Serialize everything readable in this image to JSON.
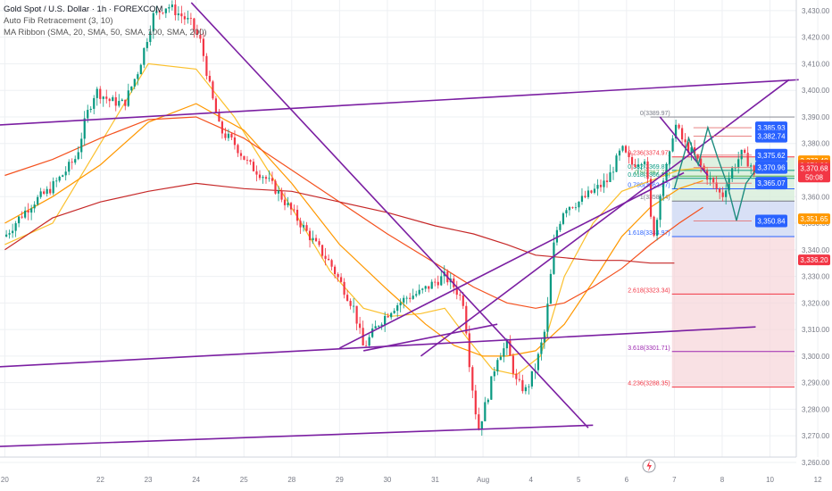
{
  "header": {
    "symbol": "Gold Spot / U.S. Dollar · 1h · FOREXCOM",
    "indicator_fib": "Auto Fib Retracement (3, 10)",
    "indicator_ma": "MA Ribbon (SMA, 20, SMA, 50, SMA, 100, SMA, 200)"
  },
  "chart_data": {
    "type": "candlestick",
    "instrument": "Gold Spot / U.S. Dollar",
    "timeframe": "1h",
    "source": "FOREXCOM",
    "y_axis": {
      "range": [
        3262,
        3434
      ],
      "ticks": [
        3260,
        3270,
        3280,
        3290,
        3300,
        3310,
        3320,
        3330,
        3340,
        3350,
        3360,
        3370,
        3380,
        3390,
        3400,
        3410,
        3420,
        3430
      ],
      "tick_labels": [
        "3,260.00",
        "3,270.00",
        "3,280.00",
        "3,290.00",
        "3,300.00",
        "3,310.00",
        "3,320.00",
        "3,330.00",
        "3,340.00",
        "3,350.00",
        "3,360.00",
        "3,370.00",
        "3,380.00",
        "3,390.00",
        "3,400.00",
        "3,410.00",
        "3,420.00",
        "3,430.00"
      ]
    },
    "x_axis": {
      "range": [
        19.4,
        12.05
      ],
      "tick_labels": [
        {
          "label": "20",
          "x": 19.5
        },
        {
          "label": "22",
          "x": 21.5
        },
        {
          "label": "23",
          "x": 22.5
        },
        {
          "label": "24",
          "x": 23.5
        },
        {
          "label": "25",
          "x": 24.5
        },
        {
          "label": "28",
          "x": 25.5
        },
        {
          "label": "29",
          "x": 26.5
        },
        {
          "label": "30",
          "x": 27.5
        },
        {
          "label": "31",
          "x": 28.5
        },
        {
          "label": "Aug",
          "x": 29.5
        },
        {
          "label": "4",
          "x": 30.5
        },
        {
          "label": "5",
          "x": 31.5
        },
        {
          "label": "6",
          "x": 32.5
        },
        {
          "label": "7",
          "x": 33.5
        },
        {
          "label": "8",
          "x": 34.5
        },
        {
          "label": "10",
          "x": 35.5
        },
        {
          "label": "12",
          "x": 36.5
        }
      ]
    },
    "price_path": [
      [
        19.5,
        3345
      ],
      [
        19.8,
        3352
      ],
      [
        20.1,
        3358
      ],
      [
        20.4,
        3362
      ],
      [
        20.7,
        3368
      ],
      [
        21.0,
        3375
      ],
      [
        21.2,
        3390
      ],
      [
        21.4,
        3400
      ],
      [
        21.7,
        3396
      ],
      [
        22.0,
        3395
      ],
      [
        22.3,
        3408
      ],
      [
        22.6,
        3428
      ],
      [
        22.9,
        3432
      ],
      [
        23.2,
        3428
      ],
      [
        23.4,
        3425
      ],
      [
        23.6,
        3418
      ],
      [
        23.8,
        3400
      ],
      [
        24.0,
        3385
      ],
      [
        24.3,
        3380
      ],
      [
        24.6,
        3372
      ],
      [
        24.9,
        3368
      ],
      [
        25.2,
        3362
      ],
      [
        25.6,
        3352
      ],
      [
        26.0,
        3342
      ],
      [
        26.3,
        3335
      ],
      [
        26.6,
        3325
      ],
      [
        26.8,
        3318
      ],
      [
        27.0,
        3303
      ],
      [
        27.3,
        3312
      ],
      [
        27.6,
        3318
      ],
      [
        27.9,
        3322
      ],
      [
        28.2,
        3324
      ],
      [
        28.5,
        3328
      ],
      [
        28.7,
        3330
      ],
      [
        28.9,
        3326
      ],
      [
        29.1,
        3320
      ],
      [
        29.2,
        3300
      ],
      [
        29.3,
        3285
      ],
      [
        29.4,
        3272
      ],
      [
        29.6,
        3285
      ],
      [
        29.8,
        3300
      ],
      [
        30.0,
        3304
      ],
      [
        30.2,
        3290
      ],
      [
        30.4,
        3287
      ],
      [
        30.6,
        3296
      ],
      [
        30.8,
        3310
      ],
      [
        31.0,
        3345
      ],
      [
        31.2,
        3356
      ],
      [
        31.5,
        3358
      ],
      [
        31.8,
        3362
      ],
      [
        32.1,
        3366
      ],
      [
        32.4,
        3378
      ],
      [
        32.6,
        3372
      ],
      [
        32.9,
        3375
      ],
      [
        33.0,
        3352
      ],
      [
        33.1,
        3345
      ],
      [
        33.2,
        3362
      ],
      [
        33.4,
        3375
      ],
      [
        33.5,
        3388
      ],
      [
        33.7,
        3380
      ],
      [
        33.9,
        3376
      ],
      [
        34.1,
        3370
      ],
      [
        34.3,
        3365
      ],
      [
        34.5,
        3360
      ],
      [
        34.7,
        3370
      ],
      [
        34.9,
        3376
      ],
      [
        35.1,
        3372
      ],
      [
        35.2,
        3365
      ]
    ],
    "moving_averages": [
      {
        "name": "SMA 20",
        "color": "#fbc02d",
        "points": [
          [
            19.5,
            3342
          ],
          [
            20.5,
            3350
          ],
          [
            21.5,
            3380
          ],
          [
            22.5,
            3410
          ],
          [
            23.5,
            3408
          ],
          [
            24.3,
            3390
          ],
          [
            25.0,
            3370
          ],
          [
            25.7,
            3350
          ],
          [
            26.3,
            3332
          ],
          [
            27.0,
            3318
          ],
          [
            27.6,
            3315
          ],
          [
            28.2,
            3316
          ],
          [
            28.7,
            3318
          ],
          [
            29.2,
            3306
          ],
          [
            29.7,
            3295
          ],
          [
            30.2,
            3293
          ],
          [
            30.7,
            3300
          ],
          [
            31.2,
            3330
          ],
          [
            31.8,
            3350
          ],
          [
            32.4,
            3362
          ],
          [
            33.0,
            3366
          ],
          [
            33.6,
            3370
          ],
          [
            34.2,
            3371
          ]
        ]
      },
      {
        "name": "SMA 50",
        "color": "#ff9800",
        "points": [
          [
            19.5,
            3350
          ],
          [
            20.5,
            3360
          ],
          [
            21.5,
            3372
          ],
          [
            22.5,
            3388
          ],
          [
            23.5,
            3395
          ],
          [
            24.5,
            3385
          ],
          [
            25.5,
            3365
          ],
          [
            26.5,
            3342
          ],
          [
            27.5,
            3325
          ],
          [
            28.3,
            3312
          ],
          [
            28.9,
            3304
          ],
          [
            29.5,
            3300
          ],
          [
            30.0,
            3300
          ],
          [
            30.6,
            3302
          ],
          [
            31.2,
            3312
          ],
          [
            31.8,
            3328
          ],
          [
            32.4,
            3345
          ],
          [
            33.0,
            3356
          ],
          [
            33.6,
            3363
          ],
          [
            34.1,
            3366
          ]
        ]
      },
      {
        "name": "SMA 100",
        "color": "#f4511e",
        "points": [
          [
            19.5,
            3368
          ],
          [
            20.5,
            3374
          ],
          [
            21.5,
            3382
          ],
          [
            22.5,
            3389
          ],
          [
            23.5,
            3390
          ],
          [
            24.5,
            3382
          ],
          [
            25.5,
            3370
          ],
          [
            26.5,
            3358
          ],
          [
            27.5,
            3346
          ],
          [
            28.5,
            3335
          ],
          [
            29.3,
            3326
          ],
          [
            30.0,
            3320
          ],
          [
            30.6,
            3318
          ],
          [
            31.2,
            3320
          ],
          [
            31.8,
            3326
          ],
          [
            32.4,
            3333
          ],
          [
            33.0,
            3342
          ],
          [
            33.6,
            3350
          ],
          [
            34.1,
            3356
          ]
        ]
      },
      {
        "name": "SMA 200",
        "color": "#c62828",
        "points": [
          [
            19.5,
            3340
          ],
          [
            20.5,
            3352
          ],
          [
            21.5,
            3358
          ],
          [
            22.5,
            3362
          ],
          [
            23.5,
            3365
          ],
          [
            24.5,
            3363
          ],
          [
            25.5,
            3362
          ],
          [
            26.5,
            3358
          ],
          [
            27.5,
            3354
          ],
          [
            28.5,
            3349
          ],
          [
            29.3,
            3346
          ],
          [
            30.0,
            3342
          ],
          [
            30.6,
            3338
          ],
          [
            31.2,
            3337
          ],
          [
            31.8,
            3336
          ],
          [
            32.4,
            3336
          ],
          [
            33.0,
            3335
          ],
          [
            33.5,
            3335
          ]
        ]
      }
    ],
    "fib_levels": [
      {
        "ratio": "0.236",
        "value": 3374.97,
        "label": "0.236(3374.97)"
      },
      {
        "ratio": "0.382",
        "value": 3369.87,
        "label": "0.382(3369.87)"
      },
      {
        "ratio": "0.5",
        "value": 3367.72,
        "label": "0.5(3367.72)"
      },
      {
        "ratio": "0.618",
        "value": 3366.88,
        "label": "0.618(3366.88)"
      },
      {
        "ratio": "0.786",
        "value": 3362.97,
        "label": "0.786(3362.97)"
      },
      {
        "ratio": "1",
        "value": 3358.34,
        "label": "1(3358.34)"
      },
      {
        "ratio": "1.618",
        "value": 3344.97,
        "label": "1.618(3344.97)"
      },
      {
        "ratio": "2.618",
        "value": 3323.34,
        "label": "2.618(3323.34)"
      },
      {
        "ratio": "3.618",
        "value": 3301.71,
        "label": "3.618(3301.71)"
      },
      {
        "ratio": "4.236",
        "value": 3288.35,
        "label": "4.236(3288.35)"
      }
    ],
    "fib_top_label": "0(3389.97)",
    "fib_top_value": 3389.97,
    "trendlines": [
      {
        "from": [
          19.4,
          3387
        ],
        "to": [
          36.1,
          3404
        ]
      },
      {
        "from": [
          23.4,
          3433
        ],
        "to": [
          31.7,
          3273
        ]
      },
      {
        "from": [
          19.4,
          3296
        ],
        "to": [
          35.2,
          3311
        ]
      },
      {
        "from": [
          19.4,
          3266
        ],
        "to": [
          31.8,
          3274
        ]
      },
      {
        "from": [
          26.5,
          3303
        ],
        "to": [
          33.7,
          3369
        ]
      },
      {
        "from": [
          28.2,
          3300
        ],
        "to": [
          35.9,
          3404
        ]
      },
      {
        "from": [
          27.0,
          3302
        ],
        "to": [
          29.8,
          3312
        ]
      },
      {
        "from": [
          33.2,
          3390
        ],
        "to": [
          34.2,
          3368
        ]
      }
    ],
    "projection_path": [
      [
        33.5,
        3363
      ],
      [
        33.8,
        3382
      ],
      [
        34.0,
        3372
      ],
      [
        34.2,
        3386
      ],
      [
        34.4,
        3375
      ],
      [
        34.6,
        3365
      ],
      [
        34.8,
        3351
      ],
      [
        35.0,
        3365
      ],
      [
        35.2,
        3370
      ]
    ],
    "projection_targets": [
      {
        "label": "3,385.93",
        "value": 3385.93,
        "color": "#2962ff"
      },
      {
        "label": "3,382.74",
        "value": 3382.74,
        "color": "#2962ff"
      },
      {
        "label": "3,375.62",
        "value": 3375.62,
        "color": "#2962ff"
      },
      {
        "label": "3,370.96",
        "value": 3370.96,
        "color": "#2962ff"
      },
      {
        "label": "3,365.07",
        "value": 3365.07,
        "color": "#2962ff"
      },
      {
        "label": "3,350.84",
        "value": 3350.84,
        "color": "#2962ff"
      }
    ],
    "price_tags": [
      {
        "label": "3,373.48",
        "value": 3373.48,
        "color": "#ff9800"
      },
      {
        "label": "3,371.86",
        "value": 3371.86,
        "color": "#f4511e"
      },
      {
        "label": "3,370.68",
        "value": 3370.68,
        "color": "#f23645"
      },
      {
        "label": "50:08",
        "value": 3367.4,
        "color": "#f23645"
      },
      {
        "label": "3,351.65",
        "value": 3351.65,
        "color": "#ff9800"
      },
      {
        "label": "3,336.20",
        "value": 3336.2,
        "color": "#f23645"
      }
    ],
    "zones": {
      "green": [
        3358.34,
        3375
      ],
      "red": [
        3288.35,
        3358.34
      ],
      "blue": [
        3344.97,
        3358.34
      ]
    },
    "grid": true,
    "legend_placement": "top-left"
  },
  "colors": {
    "up": "#089981",
    "down": "#f23645",
    "trend": "#7b1fa2",
    "projection": "#1e8c7f",
    "grid": "#eef0f3"
  },
  "icons": {
    "event": "lightning-icon"
  }
}
